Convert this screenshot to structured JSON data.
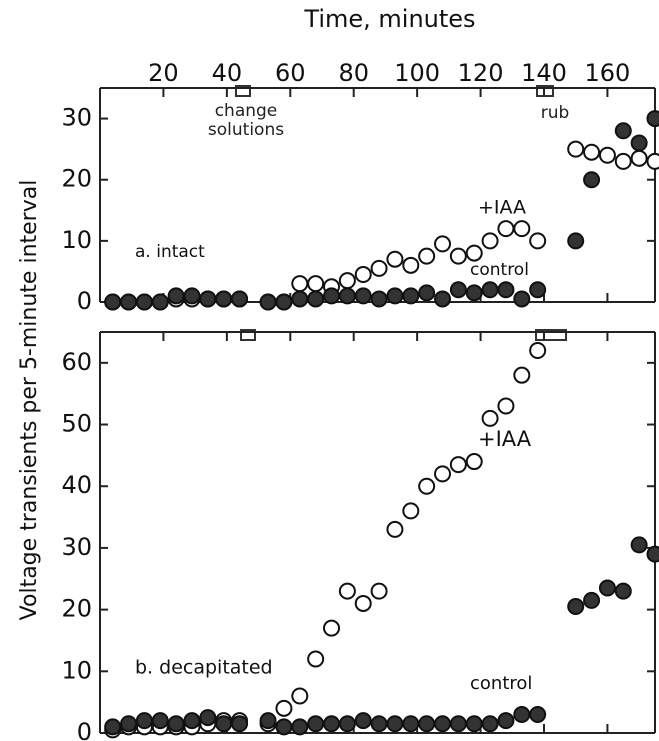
{
  "chart_data": [
    {
      "type": "scatter",
      "title": "a. intact",
      "xlabel": "Time, minutes",
      "ylabel": "Voltage transients per 5-minute interval",
      "annotations": [
        "change solutions",
        "rub"
      ],
      "xlim": [
        0,
        175
      ],
      "xticks": [
        20,
        40,
        60,
        80,
        100,
        120,
        140,
        160
      ],
      "ylim": [
        0,
        35
      ],
      "yticks": [
        0,
        10,
        20,
        30
      ],
      "series": [
        {
          "name": "+IAA",
          "color": "#ffffff",
          "x": [
            4,
            9,
            14,
            19,
            24,
            29,
            34,
            39,
            44,
            53,
            58,
            63,
            68,
            73,
            78,
            83,
            88,
            93,
            98,
            103,
            108,
            113,
            118,
            123,
            128,
            133,
            138,
            150,
            155,
            160,
            165,
            170,
            175
          ],
          "values": [
            0,
            0,
            0,
            0,
            0.5,
            0.5,
            0.5,
            0.5,
            0.5,
            0,
            0,
            3,
            3,
            2.5,
            3.5,
            4.5,
            5.5,
            7,
            6,
            7.5,
            9.5,
            7.5,
            8,
            10,
            12,
            12,
            10,
            25,
            24.5,
            24,
            23,
            23.5,
            23
          ]
        },
        {
          "name": "control",
          "color": "#333333",
          "x": [
            4,
            9,
            14,
            19,
            24,
            29,
            34,
            39,
            44,
            53,
            58,
            63,
            68,
            73,
            78,
            83,
            88,
            93,
            98,
            103,
            108,
            113,
            118,
            123,
            128,
            133,
            138,
            150,
            155,
            165,
            170,
            175
          ],
          "values": [
            0,
            0,
            0,
            0,
            1,
            1,
            0.5,
            0.5,
            0.5,
            0,
            0,
            0.5,
            0.5,
            1,
            1,
            1,
            0.5,
            1,
            1,
            1.5,
            0.5,
            2,
            1.5,
            2,
            2,
            0.5,
            2,
            10,
            20,
            28,
            26,
            30
          ]
        }
      ]
    },
    {
      "type": "scatter",
      "title": "b. decapitated",
      "xlim": [
        0,
        175
      ],
      "xticks": [
        20,
        40,
        60,
        80,
        100,
        120,
        140,
        160
      ],
      "ylim": [
        0,
        65
      ],
      "yticks": [
        0,
        10,
        20,
        30,
        40,
        50,
        60
      ],
      "series": [
        {
          "name": "+IAA",
          "color": "#ffffff",
          "x": [
            4,
            9,
            14,
            19,
            24,
            29,
            34,
            39,
            44,
            53,
            58,
            63,
            68,
            73,
            78,
            83,
            88,
            93,
            98,
            103,
            108,
            113,
            118,
            123,
            128,
            133,
            138
          ],
          "values": [
            0.5,
            1,
            1,
            1,
            1,
            1,
            1.5,
            2,
            2,
            1.5,
            4,
            6,
            12,
            17,
            23,
            21,
            23,
            33,
            36,
            40,
            42,
            43.5,
            44,
            51,
            53,
            58,
            62
          ]
        },
        {
          "name": "control",
          "color": "#333333",
          "x": [
            4,
            9,
            14,
            19,
            24,
            29,
            34,
            39,
            44,
            53,
            58,
            63,
            68,
            73,
            78,
            83,
            88,
            93,
            98,
            103,
            108,
            113,
            118,
            123,
            128,
            133,
            138,
            150,
            155,
            160,
            165,
            170,
            175
          ],
          "values": [
            1,
            1.5,
            2,
            2,
            1.5,
            2,
            2.5,
            1.5,
            1.5,
            2,
            1,
            1,
            1.5,
            1.5,
            1.5,
            2,
            1.5,
            1.5,
            1.5,
            1.5,
            1.5,
            1.5,
            1.5,
            1.5,
            2,
            3,
            3,
            20.5,
            21.5,
            23.5,
            23,
            30.5,
            29
          ]
        }
      ]
    }
  ]
}
